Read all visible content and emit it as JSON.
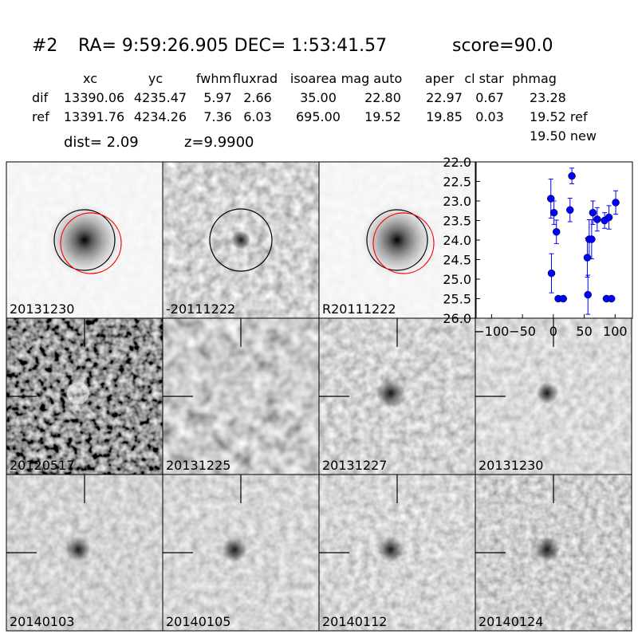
{
  "header": {
    "id": "#2",
    "coords": "RA= 9:59:26.905 DEC= 1:53:41.57",
    "score": "score=90.0"
  },
  "table": {
    "columns": [
      "xc",
      "yc",
      "fwhm",
      "fluxrad",
      "isoarea",
      "mag auto",
      "aper",
      "cl star",
      "phmag"
    ],
    "rows": [
      [
        "dif",
        "13390.06",
        "4235.47",
        "5.97",
        "2.66",
        "35.00",
        "22.80",
        "22.97",
        "0.67",
        "23.28"
      ],
      [
        "ref",
        "13391.76",
        "4234.26",
        "7.36",
        "6.03",
        "695.00",
        "19.52",
        "19.85",
        "0.03",
        "19.52 ref"
      ]
    ],
    "extra": "19.50 new"
  },
  "dist": "dist=  2.09",
  "z": "z=9.9900",
  "stamps": [
    {
      "label": "20131230"
    },
    {
      "label": "-20111222"
    },
    {
      "label": "R20111222"
    },
    {
      "label": "20120517"
    },
    {
      "label": "20131225"
    },
    {
      "label": "20131227"
    },
    {
      "label": "20131230",
      "color": "#ff0000"
    },
    {
      "label": "20140103"
    },
    {
      "label": "20140105"
    },
    {
      "label": "20140112"
    },
    {
      "label": "20140124"
    }
  ],
  "chart_data": {
    "type": "scatter",
    "color": "#0000ff",
    "invert_y": true,
    "xlim": [
      -125,
      128
    ],
    "ylim": [
      22,
      26
    ],
    "xticks": [
      {
        "value": -100,
        "label": "−100"
      },
      {
        "value": -50,
        "label": "−50"
      },
      0,
      50,
      100
    ],
    "yticks": [
      {
        "value": 22,
        "label": "22.0"
      },
      {
        "value": 22.5,
        "label": "22.5"
      },
      {
        "value": 23,
        "label": "23.0"
      },
      {
        "value": 23.5,
        "label": "23.5"
      },
      {
        "value": 24,
        "label": "24.0"
      },
      {
        "value": 24.5,
        "label": "24.5"
      },
      {
        "value": 25,
        "label": "25.0"
      },
      {
        "value": 25.5,
        "label": "25.5"
      },
      {
        "value": 26,
        "label": "26.0"
      }
    ],
    "x": [
      -4,
      -3,
      1,
      5,
      8,
      16,
      27,
      30,
      55,
      56,
      58,
      62,
      64,
      71,
      83,
      86,
      90,
      94,
      101
    ],
    "values": [
      22.94,
      24.85,
      23.3,
      23.79,
      25.5,
      25.5,
      23.23,
      22.36,
      24.45,
      25.4,
      23.98,
      23.98,
      23.3,
      23.47,
      23.5,
      25.5,
      23.42,
      25.5,
      23.04
    ],
    "errors": [
      0.5,
      0.5,
      0.3,
      0.3,
      0.05,
      0.05,
      0.3,
      0.2,
      0.5,
      0.5,
      0.5,
      0.5,
      0.3,
      0.3,
      0.2,
      0.05,
      0.3,
      0.05,
      0.3
    ]
  }
}
